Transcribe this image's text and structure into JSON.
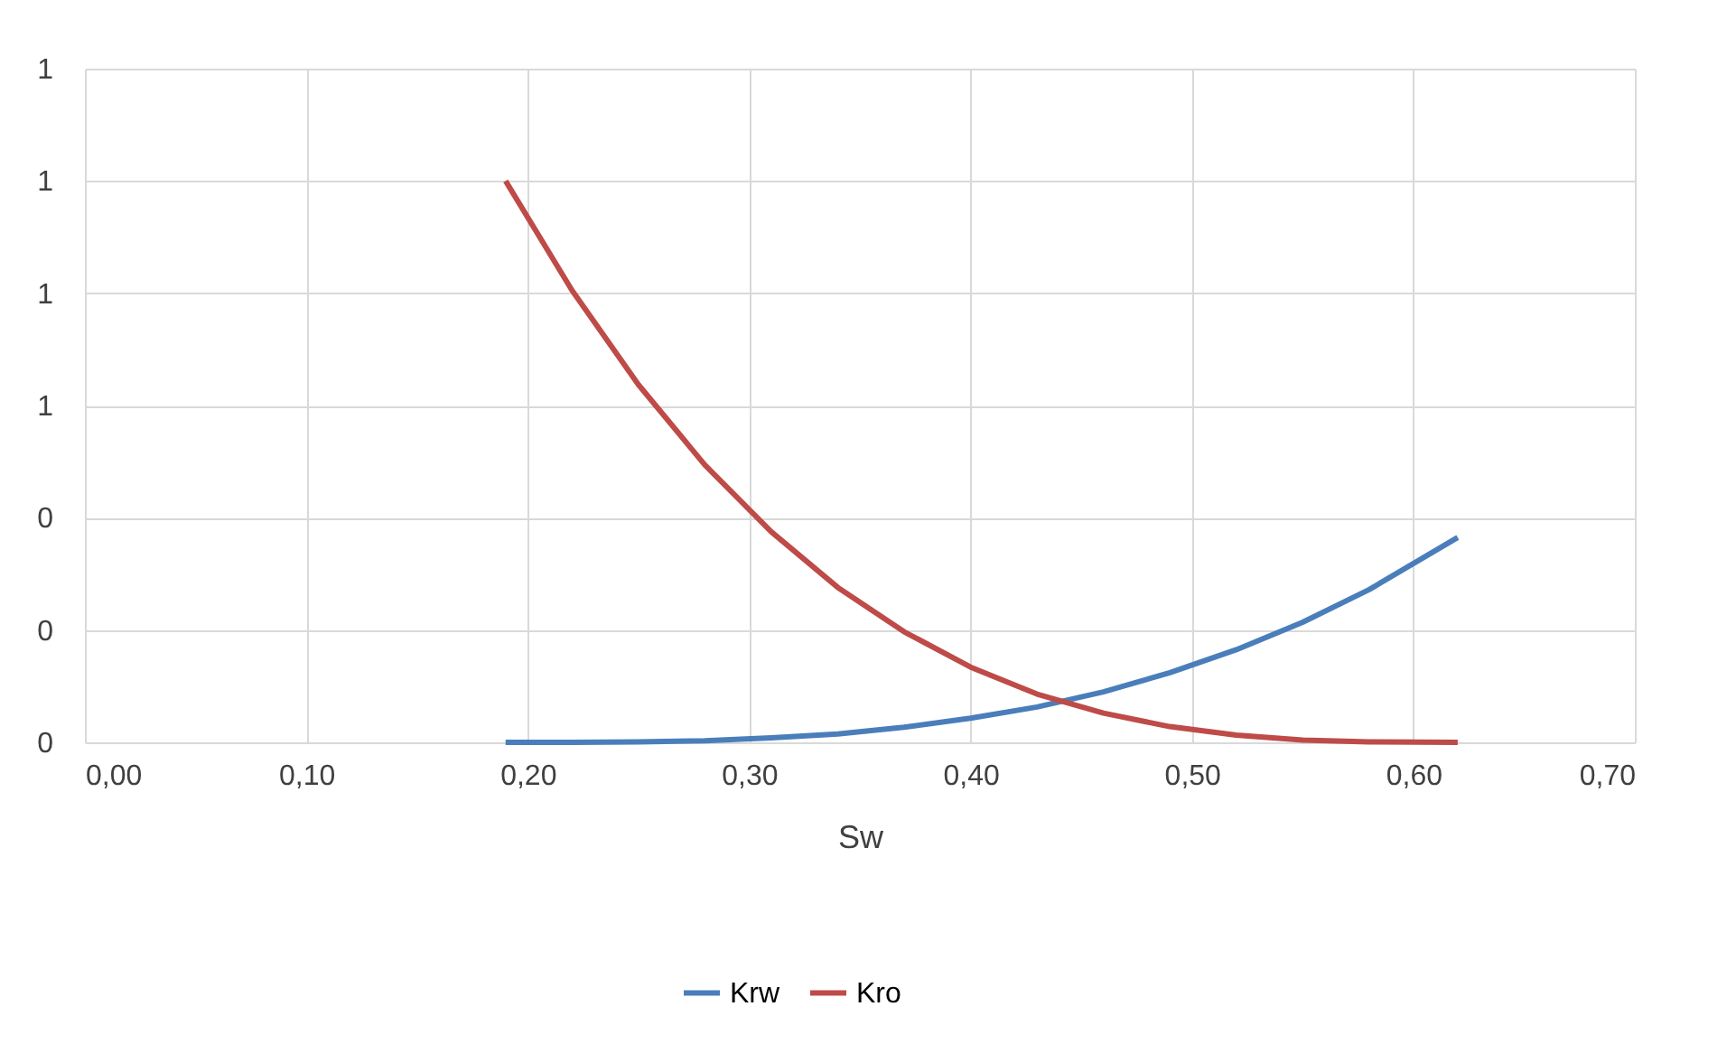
{
  "chart_data": {
    "type": "line",
    "xlabel": "Sw",
    "x": [
      0.19,
      0.22,
      0.25,
      0.28,
      0.31,
      0.34,
      0.37,
      0.4,
      0.43,
      0.46,
      0.49,
      0.52,
      0.55,
      0.58,
      0.62
    ],
    "series": [
      {
        "name": "Krw",
        "color": "#4a7ebb",
        "values": [
          0,
          0.0,
          0.001,
          0.003,
          0.008,
          0.015,
          0.027,
          0.043,
          0.063,
          0.09,
          0.124,
          0.165,
          0.214,
          0.272,
          0.365
        ]
      },
      {
        "name": "Kro",
        "color": "#be4b48",
        "values": [
          1,
          0.805,
          0.637,
          0.494,
          0.375,
          0.276,
          0.197,
          0.134,
          0.086,
          0.052,
          0.028,
          0.013,
          0.004,
          0.001,
          0
        ]
      }
    ],
    "xlim": [
      0,
      0.7
    ],
    "xticks": [
      {
        "value": 0,
        "label": "0,00"
      },
      {
        "value": 0.1,
        "label": "0,10"
      },
      {
        "value": 0.2,
        "label": "0,20"
      },
      {
        "value": 0.3,
        "label": "0,30"
      },
      {
        "value": 0.4,
        "label": "0,40"
      },
      {
        "value": 0.5,
        "label": "0,50"
      },
      {
        "value": 0.6,
        "label": "0,60"
      },
      {
        "value": 0.7,
        "label": "0,70"
      }
    ],
    "ylim": [
      0,
      1.2
    ],
    "yticks": [
      {
        "value": 0,
        "label": "0"
      },
      {
        "value": 0.2,
        "label": "0"
      },
      {
        "value": 0.4,
        "label": "0"
      },
      {
        "value": 0.6,
        "label": "1"
      },
      {
        "value": 0.8,
        "label": "1"
      },
      {
        "value": 1.0,
        "label": "1"
      },
      {
        "value": 1.2,
        "label": "1"
      }
    ],
    "grid": true,
    "legend": "bottom",
    "marker": "none",
    "line_style": "solid"
  }
}
